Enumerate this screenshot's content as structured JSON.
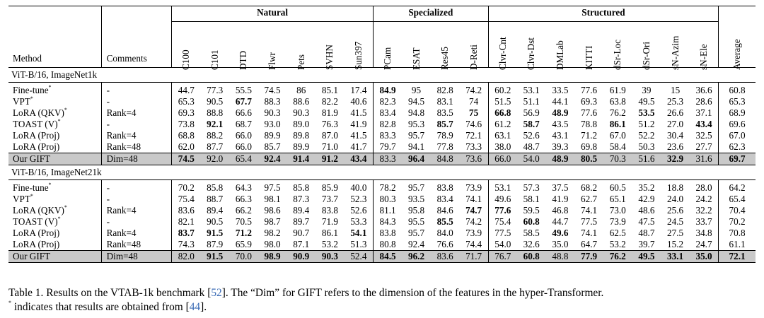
{
  "groups": {
    "natural": "Natural",
    "specialized": "Specialized",
    "structured": "Structured"
  },
  "headers": {
    "method": "Method",
    "comments": "Comments",
    "datasets": [
      "C100",
      "C101",
      "DTD",
      "Flwr",
      "Pets",
      "SVHN",
      "Sun397",
      "PCam",
      "ESAT",
      "Res45",
      "D-Reti",
      "Clvr-Cnt",
      "Clvr-Dst",
      "DMLab",
      "KITTI",
      "dSr-Loc",
      "dSr-Ori",
      "sN-Azim",
      "sN-Ele"
    ],
    "average": "Average"
  },
  "sections": [
    {
      "title": "ViT-B/16, ImageNet1k",
      "rows": [
        {
          "method": "Fine-tune",
          "star": "*",
          "comment": "-",
          "values": [
            "44.7",
            "77.3",
            "55.5",
            "74.5",
            "86",
            "85.1",
            "17.4",
            "84.9",
            "95",
            "82.8",
            "74.2",
            "60.2",
            "53.1",
            "33.5",
            "77.6",
            "61.9",
            "39",
            "15",
            "36.6"
          ],
          "avg": "60.8",
          "bold": [
            7
          ],
          "avg_bold": false
        },
        {
          "method": "VPT",
          "star": "*",
          "comment": "-",
          "values": [
            "65.3",
            "90.5",
            "67.7",
            "88.3",
            "88.6",
            "82.2",
            "40.6",
            "82.3",
            "94.5",
            "83.1",
            "74",
            "51.5",
            "51.1",
            "44.1",
            "69.3",
            "63.8",
            "49.5",
            "25.3",
            "28.6"
          ],
          "avg": "65.3",
          "bold": [
            2
          ],
          "avg_bold": false
        },
        {
          "method": "LoRA (QKV)",
          "star": "*",
          "comment": "Rank=4",
          "values": [
            "69.3",
            "88.8",
            "66.6",
            "90.3",
            "90.3",
            "81.9",
            "41.5",
            "83.4",
            "94.8",
            "83.5",
            "75",
            "66.8",
            "56.9",
            "48.9",
            "77.6",
            "76.2",
            "53.5",
            "26.6",
            "37.1"
          ],
          "avg": "68.9",
          "bold": [
            10,
            11,
            13,
            16
          ],
          "avg_bold": false
        },
        {
          "method": "TOAST (V)",
          "star": "*",
          "comment": "-",
          "values": [
            "73.8",
            "92.1",
            "68.7",
            "93.0",
            "89.0",
            "76.3",
            "41.9",
            "82.8",
            "95.3",
            "85.7",
            "74.6",
            "61.2",
            "58.7",
            "43.5",
            "78.8",
            "86.1",
            "51.2",
            "27.0",
            "43.4"
          ],
          "avg": "69.6",
          "bold": [
            1,
            9,
            12,
            15,
            18
          ],
          "avg_bold": false
        },
        {
          "method": "LoRA (Proj)",
          "star": "",
          "comment": "Rank=4",
          "values": [
            "68.8",
            "88.2",
            "66.0",
            "89.9",
            "89.8",
            "87.0",
            "41.5",
            "83.3",
            "95.7",
            "78.9",
            "72.1",
            "63.1",
            "52.6",
            "43.1",
            "71.2",
            "67.0",
            "52.2",
            "30.4",
            "32.5"
          ],
          "avg": "67.0",
          "bold": [],
          "avg_bold": false
        },
        {
          "method": "LoRA (Proj)",
          "star": "",
          "comment": "Rank=48",
          "values": [
            "62.0",
            "87.7",
            "66.0",
            "85.7",
            "89.9",
            "71.0",
            "41.7",
            "79.7",
            "94.1",
            "77.8",
            "73.3",
            "38.0",
            "48.7",
            "39.3",
            "69.8",
            "58.4",
            "50.3",
            "23.6",
            "27.7"
          ],
          "avg": "62.3",
          "bold": [],
          "avg_bold": false
        },
        {
          "method": "Our GIFT",
          "star": "",
          "comment": "Dim=48",
          "values": [
            "74.5",
            "92.0",
            "65.4",
            "92.4",
            "91.4",
            "91.2",
            "43.4",
            "83.3",
            "96.4",
            "84.8",
            "73.6",
            "66.0",
            "54.0",
            "48.9",
            "80.5",
            "70.3",
            "51.6",
            "32.9",
            "31.6"
          ],
          "avg": "69.7",
          "bold": [
            0,
            3,
            4,
            5,
            6,
            8,
            13,
            14,
            17
          ],
          "avg_bold": true,
          "ours": true
        }
      ]
    },
    {
      "title": "ViT-B/16, ImageNet21k",
      "rows": [
        {
          "method": "Fine-tune",
          "star": "*",
          "comment": "-",
          "values": [
            "70.2",
            "85.8",
            "64.3",
            "97.5",
            "85.8",
            "85.9",
            "40.0",
            "78.2",
            "95.7",
            "83.8",
            "73.9",
            "53.1",
            "57.3",
            "37.5",
            "68.2",
            "60.5",
            "35.2",
            "18.8",
            "28.0"
          ],
          "avg": "64.2",
          "bold": [],
          "avg_bold": false
        },
        {
          "method": "VPT",
          "star": "*",
          "comment": "-",
          "values": [
            "75.4",
            "88.7",
            "66.3",
            "98.1",
            "87.3",
            "73.7",
            "52.3",
            "80.3",
            "93.5",
            "83.4",
            "74.1",
            "49.6",
            "58.1",
            "41.9",
            "62.7",
            "65.1",
            "42.9",
            "24.0",
            "24.2"
          ],
          "avg": "65.4",
          "bold": [],
          "avg_bold": false
        },
        {
          "method": "LoRA (QKV)",
          "star": "*",
          "comment": "Rank=4",
          "values": [
            "83.6",
            "89.4",
            "66.2",
            "98.6",
            "89.4",
            "83.8",
            "52.6",
            "81.1",
            "95.8",
            "84.6",
            "74.7",
            "77.6",
            "59.5",
            "46.8",
            "74.1",
            "73.0",
            "48.6",
            "25.6",
            "32.2"
          ],
          "avg": "70.4",
          "bold": [
            10,
            11
          ],
          "avg_bold": false
        },
        {
          "method": "TOAST (V)",
          "star": "*",
          "comment": "-",
          "values": [
            "82.1",
            "90.5",
            "70.5",
            "98.7",
            "89.7",
            "71.9",
            "53.3",
            "84.3",
            "95.5",
            "85.5",
            "74.2",
            "75.4",
            "60.8",
            "44.7",
            "77.5",
            "73.9",
            "47.5",
            "24.5",
            "33.7"
          ],
          "avg": "70.2",
          "bold": [
            9,
            12
          ],
          "avg_bold": false
        },
        {
          "method": "LoRA (Proj)",
          "star": "",
          "comment": "Rank=4",
          "values": [
            "83.7",
            "91.5",
            "71.2",
            "98.2",
            "90.7",
            "86.1",
            "54.1",
            "83.8",
            "95.7",
            "84.0",
            "73.9",
            "77.5",
            "58.5",
            "49.6",
            "74.1",
            "62.5",
            "48.7",
            "27.5",
            "34.8"
          ],
          "avg": "70.8",
          "bold": [
            0,
            1,
            2,
            6,
            13
          ],
          "avg_bold": false
        },
        {
          "method": "LoRA (Proj)",
          "star": "",
          "comment": "Rank=48",
          "values": [
            "74.3",
            "87.9",
            "65.9",
            "98.0",
            "87.1",
            "53.2",
            "51.3",
            "80.8",
            "92.4",
            "76.6",
            "74.4",
            "54.0",
            "32.6",
            "35.0",
            "64.7",
            "53.2",
            "39.7",
            "15.2",
            "24.7"
          ],
          "avg": "61.1",
          "bold": [],
          "avg_bold": false
        },
        {
          "method": "Our GIFT",
          "star": "",
          "comment": "Dim=48",
          "values": [
            "82.0",
            "91.5",
            "70.0",
            "98.9",
            "90.9",
            "90.3",
            "52.4",
            "84.5",
            "96.2",
            "83.6",
            "71.7",
            "76.7",
            "60.8",
            "48.8",
            "77.9",
            "76.2",
            "49.5",
            "33.1",
            "35.0"
          ],
          "avg": "72.1",
          "bold": [
            1,
            3,
            4,
            5,
            7,
            8,
            12,
            14,
            15,
            16,
            17,
            18
          ],
          "avg_bold": true,
          "ours": true
        }
      ]
    }
  ],
  "caption": {
    "line1_before": "Table 1. Results on the VTAB-1k benchmark [",
    "ref1": "52",
    "line1_after": "]. The “Dim” for GIFT refers to the dimension of the features in the hyper-Transformer.",
    "line2_star": "*",
    "line2_before": " indicates that results are obtained from [",
    "ref2": "44",
    "line2_after": "]."
  }
}
